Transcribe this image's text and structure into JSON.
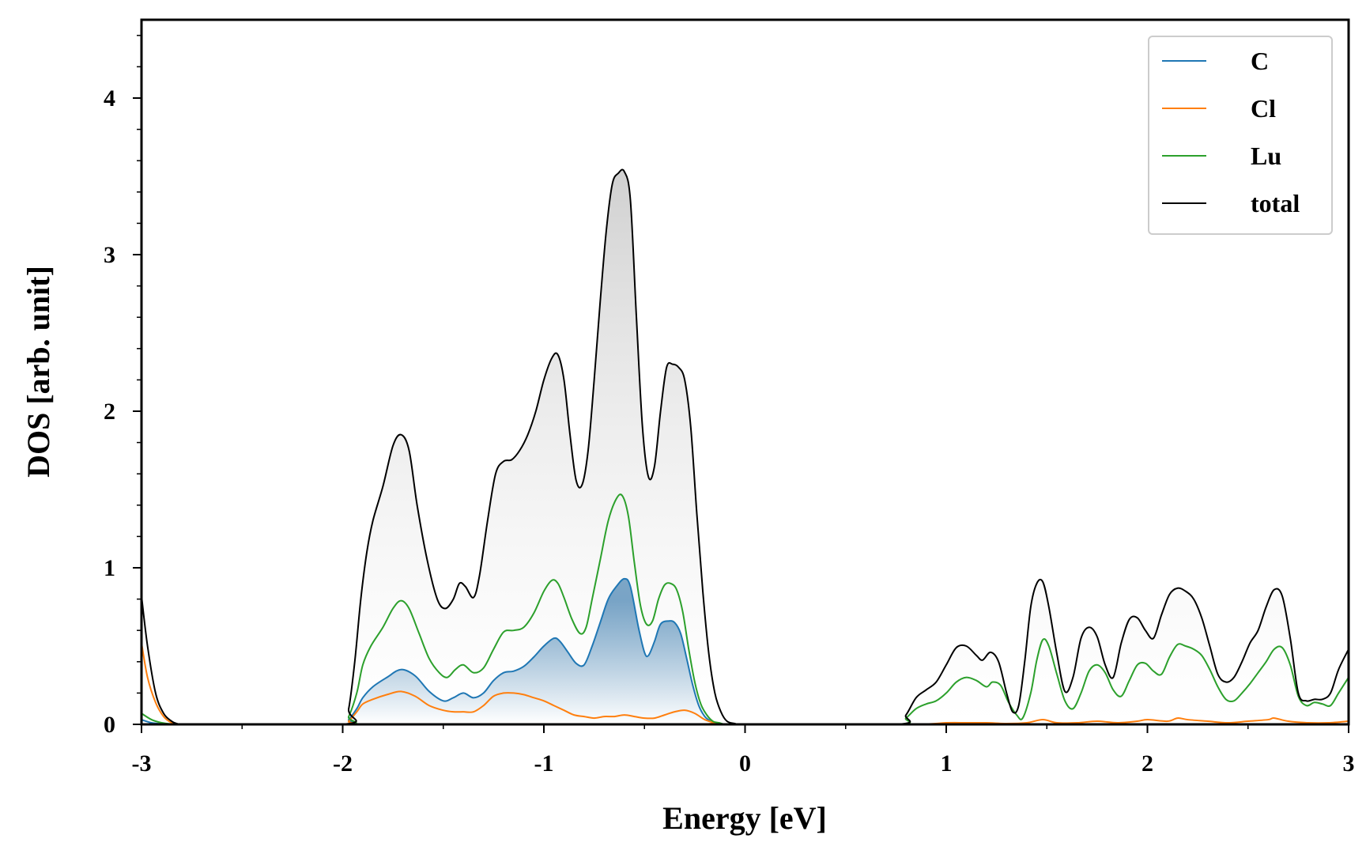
{
  "chart_data": {
    "type": "line",
    "title": "",
    "xlabel": "Energy [eV]",
    "ylabel": "DOS [arb. unit]",
    "xlim": [
      -3,
      3
    ],
    "ylim": [
      0,
      4.5
    ],
    "x_ticks": [
      -3,
      -2,
      -1,
      0,
      1,
      2,
      3
    ],
    "x_tick_labels": [
      "-3",
      "-2",
      "-1",
      "0",
      "1",
      "2",
      "3"
    ],
    "y_ticks": [
      0,
      1,
      2,
      3,
      4
    ],
    "y_tick_labels": [
      "0",
      "1",
      "2",
      "3",
      "4"
    ],
    "legend_position": "top-right",
    "grid": false,
    "series": [
      {
        "name": "C",
        "color": "#1f77b4",
        "fill": "blue-gradient",
        "x": [
          -3.0,
          -2.95,
          -2.9,
          -2.85,
          -2.8,
          -2.0,
          -1.97,
          -1.93,
          -1.9,
          -1.85,
          -1.78,
          -1.71,
          -1.64,
          -1.57,
          -1.5,
          -1.45,
          -1.4,
          -1.35,
          -1.3,
          -1.25,
          -1.2,
          -1.15,
          -1.1,
          -1.05,
          -1.0,
          -0.95,
          -0.92,
          -0.88,
          -0.84,
          -0.8,
          -0.76,
          -0.72,
          -0.68,
          -0.64,
          -0.6,
          -0.57,
          -0.53,
          -0.5,
          -0.48,
          -0.45,
          -0.42,
          -0.38,
          -0.35,
          -0.32,
          -0.29,
          -0.26,
          -0.23,
          -0.2,
          -0.17,
          -0.14,
          -0.1,
          -0.05,
          0.0,
          3.0
        ],
        "values": [
          0.03,
          0.01,
          0.003,
          0.0,
          0.0,
          0.0,
          0.03,
          0.1,
          0.17,
          0.24,
          0.3,
          0.35,
          0.31,
          0.21,
          0.15,
          0.17,
          0.2,
          0.17,
          0.2,
          0.28,
          0.33,
          0.34,
          0.37,
          0.43,
          0.5,
          0.55,
          0.53,
          0.46,
          0.39,
          0.38,
          0.5,
          0.65,
          0.8,
          0.88,
          0.93,
          0.88,
          0.62,
          0.46,
          0.44,
          0.53,
          0.64,
          0.66,
          0.65,
          0.58,
          0.42,
          0.25,
          0.12,
          0.05,
          0.02,
          0.005,
          0.0,
          0.0,
          0.0,
          0.0
        ]
      },
      {
        "name": "Cl",
        "color": "#ff7f0e",
        "x": [
          -3.0,
          -2.97,
          -2.93,
          -2.89,
          -2.85,
          -2.82,
          -2.8,
          -2.0,
          -1.97,
          -1.93,
          -1.9,
          -1.85,
          -1.78,
          -1.71,
          -1.64,
          -1.57,
          -1.5,
          -1.45,
          -1.4,
          -1.35,
          -1.3,
          -1.25,
          -1.2,
          -1.15,
          -1.1,
          -1.05,
          -1.0,
          -0.95,
          -0.9,
          -0.85,
          -0.8,
          -0.75,
          -0.7,
          -0.65,
          -0.6,
          -0.55,
          -0.5,
          -0.45,
          -0.4,
          -0.35,
          -0.3,
          -0.25,
          -0.2,
          -0.15,
          -0.1,
          0.8,
          1.0,
          1.1,
          1.2,
          1.3,
          1.4,
          1.48,
          1.55,
          1.65,
          1.75,
          1.85,
          1.95,
          2.0,
          2.1,
          2.15,
          2.2,
          2.3,
          2.4,
          2.5,
          2.6,
          2.63,
          2.7,
          2.8,
          2.9,
          3.0
        ],
        "values": [
          0.52,
          0.3,
          0.14,
          0.05,
          0.01,
          0.002,
          0.0,
          0.0,
          0.02,
          0.08,
          0.13,
          0.16,
          0.19,
          0.21,
          0.18,
          0.12,
          0.09,
          0.08,
          0.08,
          0.08,
          0.12,
          0.18,
          0.2,
          0.2,
          0.19,
          0.17,
          0.15,
          0.12,
          0.09,
          0.06,
          0.05,
          0.04,
          0.05,
          0.05,
          0.06,
          0.05,
          0.04,
          0.04,
          0.06,
          0.08,
          0.09,
          0.07,
          0.03,
          0.01,
          0.0,
          0.0,
          0.01,
          0.01,
          0.01,
          0.005,
          0.01,
          0.03,
          0.01,
          0.01,
          0.02,
          0.01,
          0.02,
          0.03,
          0.02,
          0.04,
          0.03,
          0.02,
          0.01,
          0.02,
          0.03,
          0.04,
          0.02,
          0.01,
          0.01,
          0.02
        ]
      },
      {
        "name": "Lu",
        "color": "#2ca02c",
        "x": [
          -3.0,
          -2.95,
          -2.9,
          -2.85,
          -2.8,
          -2.0,
          -1.97,
          -1.93,
          -1.9,
          -1.86,
          -1.8,
          -1.75,
          -1.71,
          -1.67,
          -1.62,
          -1.57,
          -1.52,
          -1.48,
          -1.44,
          -1.4,
          -1.35,
          -1.3,
          -1.25,
          -1.2,
          -1.15,
          -1.1,
          -1.05,
          -1.0,
          -0.96,
          -0.93,
          -0.9,
          -0.86,
          -0.82,
          -0.79,
          -0.76,
          -0.72,
          -0.68,
          -0.64,
          -0.61,
          -0.58,
          -0.55,
          -0.52,
          -0.49,
          -0.46,
          -0.43,
          -0.4,
          -0.37,
          -0.34,
          -0.31,
          -0.28,
          -0.25,
          -0.22,
          -0.19,
          -0.16,
          -0.13,
          -0.1,
          -0.05,
          0.0,
          0.75,
          0.8,
          0.85,
          0.9,
          0.95,
          1.0,
          1.05,
          1.1,
          1.15,
          1.2,
          1.23,
          1.27,
          1.31,
          1.35,
          1.38,
          1.42,
          1.45,
          1.48,
          1.51,
          1.55,
          1.59,
          1.63,
          1.67,
          1.71,
          1.75,
          1.79,
          1.83,
          1.87,
          1.91,
          1.95,
          1.99,
          2.03,
          2.07,
          2.11,
          2.15,
          2.19,
          2.23,
          2.27,
          2.31,
          2.35,
          2.39,
          2.43,
          2.47,
          2.51,
          2.55,
          2.59,
          2.63,
          2.67,
          2.71,
          2.75,
          2.79,
          2.83,
          2.87,
          2.91,
          2.95,
          3.0
        ],
        "values": [
          0.07,
          0.03,
          0.01,
          0.002,
          0.0,
          0.0,
          0.05,
          0.2,
          0.38,
          0.5,
          0.62,
          0.74,
          0.79,
          0.74,
          0.58,
          0.42,
          0.33,
          0.3,
          0.35,
          0.38,
          0.33,
          0.36,
          0.48,
          0.59,
          0.6,
          0.62,
          0.71,
          0.85,
          0.92,
          0.9,
          0.81,
          0.67,
          0.58,
          0.62,
          0.8,
          1.05,
          1.3,
          1.44,
          1.46,
          1.33,
          1.03,
          0.76,
          0.64,
          0.66,
          0.8,
          0.89,
          0.9,
          0.86,
          0.72,
          0.48,
          0.27,
          0.13,
          0.06,
          0.02,
          0.01,
          0.0,
          0.0,
          0.0,
          0.0,
          0.04,
          0.1,
          0.13,
          0.15,
          0.2,
          0.27,
          0.3,
          0.28,
          0.24,
          0.27,
          0.25,
          0.14,
          0.06,
          0.04,
          0.2,
          0.41,
          0.54,
          0.5,
          0.32,
          0.15,
          0.1,
          0.2,
          0.34,
          0.38,
          0.33,
          0.22,
          0.18,
          0.28,
          0.38,
          0.39,
          0.34,
          0.32,
          0.43,
          0.51,
          0.5,
          0.48,
          0.44,
          0.35,
          0.24,
          0.16,
          0.15,
          0.2,
          0.26,
          0.33,
          0.4,
          0.48,
          0.49,
          0.38,
          0.18,
          0.12,
          0.14,
          0.13,
          0.12,
          0.2,
          0.3
        ]
      },
      {
        "name": "total",
        "color": "#000000",
        "fill": "gray-gradient",
        "x": [
          -3.0,
          -2.97,
          -2.93,
          -2.89,
          -2.85,
          -2.82,
          -2.8,
          -2.0,
          -1.97,
          -1.94,
          -1.91,
          -1.88,
          -1.85,
          -1.8,
          -1.75,
          -1.71,
          -1.67,
          -1.63,
          -1.58,
          -1.53,
          -1.49,
          -1.45,
          -1.42,
          -1.39,
          -1.35,
          -1.32,
          -1.28,
          -1.24,
          -1.2,
          -1.16,
          -1.12,
          -1.08,
          -1.04,
          -1.0,
          -0.96,
          -0.93,
          -0.9,
          -0.87,
          -0.84,
          -0.81,
          -0.78,
          -0.75,
          -0.72,
          -0.69,
          -0.66,
          -0.63,
          -0.6,
          -0.57,
          -0.54,
          -0.51,
          -0.48,
          -0.45,
          -0.42,
          -0.39,
          -0.36,
          -0.33,
          -0.3,
          -0.27,
          -0.24,
          -0.21,
          -0.18,
          -0.15,
          -0.12,
          -0.09,
          -0.05,
          0.0,
          0.75,
          0.8,
          0.85,
          0.9,
          0.95,
          1.0,
          1.05,
          1.1,
          1.15,
          1.18,
          1.22,
          1.26,
          1.3,
          1.33,
          1.36,
          1.39,
          1.42,
          1.45,
          1.48,
          1.51,
          1.55,
          1.59,
          1.63,
          1.67,
          1.71,
          1.75,
          1.79,
          1.83,
          1.87,
          1.91,
          1.95,
          1.99,
          2.03,
          2.07,
          2.11,
          2.15,
          2.19,
          2.23,
          2.27,
          2.31,
          2.35,
          2.39,
          2.43,
          2.47,
          2.51,
          2.55,
          2.59,
          2.63,
          2.67,
          2.71,
          2.75,
          2.79,
          2.83,
          2.87,
          2.91,
          2.95,
          3.0
        ],
        "values": [
          0.82,
          0.5,
          0.2,
          0.07,
          0.02,
          0.003,
          0.0,
          0.0,
          0.1,
          0.4,
          0.8,
          1.1,
          1.3,
          1.52,
          1.78,
          1.85,
          1.75,
          1.4,
          1.05,
          0.8,
          0.74,
          0.8,
          0.9,
          0.88,
          0.81,
          0.95,
          1.3,
          1.6,
          1.68,
          1.69,
          1.75,
          1.85,
          2.0,
          2.2,
          2.34,
          2.36,
          2.2,
          1.85,
          1.56,
          1.53,
          1.75,
          2.2,
          2.7,
          3.15,
          3.45,
          3.52,
          3.53,
          3.35,
          2.6,
          1.9,
          1.58,
          1.65,
          2.0,
          2.28,
          2.3,
          2.28,
          2.2,
          1.9,
          1.35,
          0.85,
          0.45,
          0.2,
          0.08,
          0.02,
          0.005,
          0.0,
          0.0,
          0.06,
          0.17,
          0.22,
          0.27,
          0.38,
          0.49,
          0.5,
          0.44,
          0.41,
          0.46,
          0.4,
          0.2,
          0.08,
          0.12,
          0.4,
          0.75,
          0.9,
          0.91,
          0.75,
          0.45,
          0.21,
          0.3,
          0.55,
          0.62,
          0.56,
          0.38,
          0.3,
          0.52,
          0.67,
          0.68,
          0.6,
          0.55,
          0.7,
          0.83,
          0.87,
          0.85,
          0.8,
          0.68,
          0.5,
          0.32,
          0.27,
          0.3,
          0.4,
          0.52,
          0.6,
          0.75,
          0.86,
          0.82,
          0.55,
          0.2,
          0.15,
          0.16,
          0.16,
          0.2,
          0.35,
          0.48
        ]
      }
    ]
  }
}
